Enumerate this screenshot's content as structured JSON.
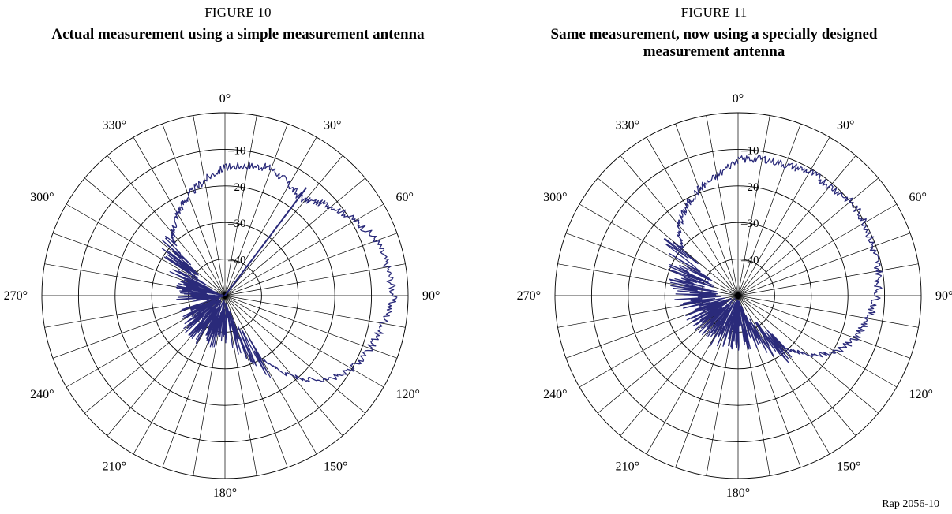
{
  "figures": [
    {
      "number": "FIGURE 10",
      "title": "Actual measurement using a simple measurement antenna"
    },
    {
      "number": "FIGURE 11",
      "title": "Same measurement, now using a specially designed measurement antenna"
    }
  ],
  "doc_ref": "Rap 2056-10",
  "colors": {
    "trace": "#2a2a7a",
    "grid": "#000000"
  },
  "chart_data": [
    {
      "type": "polar-line",
      "title": "Actual measurement using a simple measurement antenna",
      "angle_unit": "degrees",
      "angle_direction": "clockwise",
      "zero_at": "top",
      "angle_grid_step": 10,
      "angle_labels": [
        "0°",
        "30°",
        "60°",
        "90°",
        "120°",
        "150°",
        "180°",
        "210°",
        "240°",
        "270°",
        "300°",
        "330°"
      ],
      "angle_label_values": [
        0,
        30,
        60,
        90,
        120,
        150,
        180,
        210,
        240,
        270,
        300,
        330
      ],
      "radial_range": [
        -50,
        0
      ],
      "radial_ticks": [
        0,
        -10,
        -20,
        -30,
        -40,
        -50
      ],
      "radial_labels": [
        "–10",
        "–20",
        "–30",
        "–40"
      ],
      "radial_label_values": [
        -10,
        -20,
        -30,
        -40
      ],
      "series": [
        {
          "angles": [
            0,
            10,
            20,
            30,
            35,
            40,
            50,
            60,
            70,
            80,
            90,
            100,
            110,
            120,
            130,
            140,
            150,
            160,
            170,
            180,
            190,
            200,
            210,
            220,
            230,
            240,
            250,
            260,
            270,
            280,
            290,
            300,
            310,
            320,
            330,
            340,
            350,
            360
          ],
          "values": [
            -15,
            -14,
            -13,
            -15,
            -16,
            -16,
            -12,
            -9,
            -6,
            -5,
            -4,
            -6,
            -8,
            -10,
            -14,
            -21,
            -30,
            -38,
            -41,
            -42,
            -42,
            -42,
            -41,
            -42,
            -42,
            -43,
            -44,
            -43,
            -42,
            -43,
            -41,
            -38,
            -33,
            -28,
            -24,
            -21,
            -18,
            -15
          ],
          "spike": {
            "angle": 37,
            "from": -50,
            "to": -13
          }
        }
      ]
    },
    {
      "type": "polar-line",
      "title": "Same measurement, now using a specially designed measurement antenna",
      "angle_unit": "degrees",
      "angle_direction": "clockwise",
      "zero_at": "top",
      "angle_grid_step": 10,
      "angle_labels": [
        "0°",
        "30°",
        "60°",
        "90°",
        "120°",
        "150°",
        "180°",
        "210°",
        "240°",
        "270°",
        "300°",
        "330°"
      ],
      "angle_label_values": [
        0,
        30,
        60,
        90,
        120,
        150,
        180,
        210,
        240,
        270,
        300,
        330
      ],
      "radial_range": [
        -50,
        0
      ],
      "radial_ticks": [
        0,
        -10,
        -20,
        -30,
        -40,
        -50
      ],
      "radial_labels": [
        "–10",
        "–20",
        "–30",
        "–40"
      ],
      "radial_label_values": [
        -10,
        -20,
        -30,
        -40
      ],
      "series": [
        {
          "angles": [
            0,
            10,
            20,
            30,
            40,
            50,
            60,
            70,
            80,
            90,
            100,
            110,
            120,
            130,
            140,
            150,
            160,
            170,
            180,
            190,
            200,
            210,
            220,
            230,
            240,
            250,
            260,
            270,
            280,
            290,
            300,
            310,
            320,
            330,
            340,
            350,
            360
          ],
          "values": [
            -13,
            -12,
            -12,
            -11,
            -11,
            -10,
            -10,
            -11,
            -11,
            -12,
            -14,
            -16,
            -19,
            -25,
            -32,
            -38,
            -41,
            -42,
            -42,
            -42,
            -42,
            -41,
            -42,
            -42,
            -42,
            -41,
            -40,
            -39,
            -38,
            -36,
            -35,
            -30,
            -25,
            -22,
            -19,
            -17,
            -13
          ]
        }
      ]
    }
  ]
}
